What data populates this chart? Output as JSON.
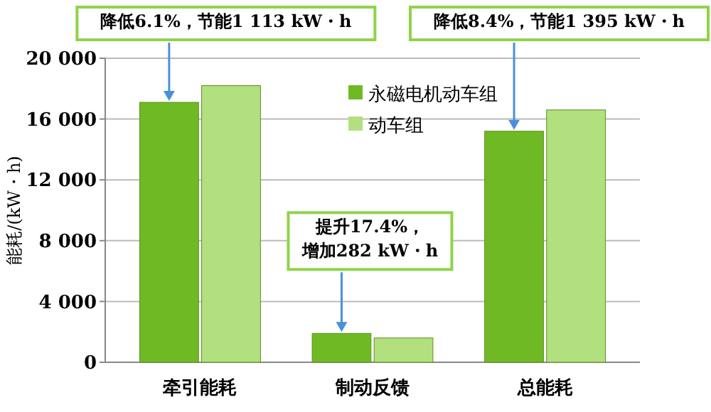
{
  "chart_data": {
    "type": "bar",
    "ylabel": "能耗/(kW・h)",
    "categories": [
      "牵引能耗",
      "制动反馈",
      "总能耗"
    ],
    "series": [
      {
        "name": "永磁电机动车组",
        "color": "#6fba24",
        "values": [
          17100,
          1900,
          15200
        ]
      },
      {
        "name": "动车组",
        "color": "#b3e07f",
        "values": [
          18200,
          1600,
          16600
        ]
      }
    ],
    "ylim": [
      0,
      20000
    ],
    "yticks": [
      0,
      {
        "value": 4000,
        "label": "4 000"
      },
      {
        "value": 8000,
        "label": "8 000"
      },
      {
        "value": 12000,
        "label": "12 000"
      },
      {
        "value": 16000,
        "label": "16 000"
      },
      {
        "value": 20000,
        "label": "20 000"
      }
    ],
    "grid": "y",
    "legend": "top right",
    "annotations": [
      "降低6.1%，节能1 113 kW・h",
      "提升17.4%，增加282 kW・h",
      "降低8.4%，节能1 395 kW・h"
    ]
  }
}
